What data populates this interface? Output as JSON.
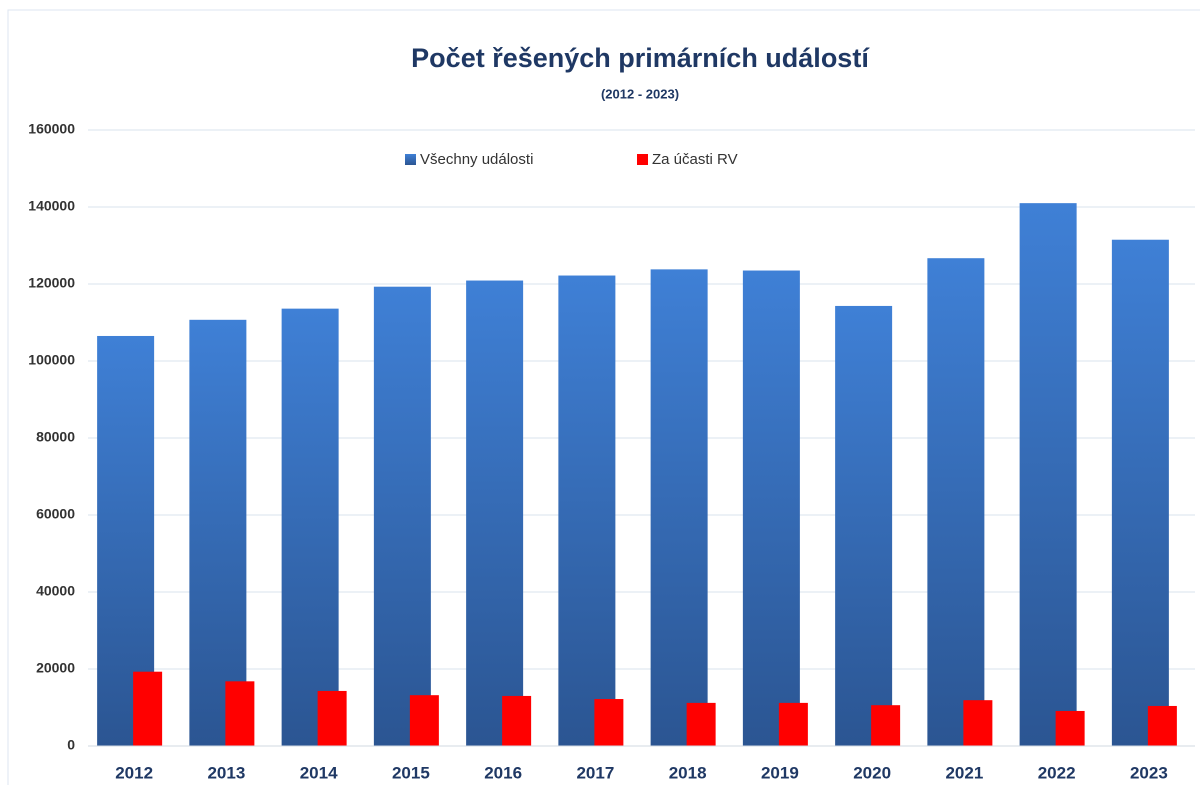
{
  "chart_data": {
    "type": "bar",
    "title": "Počet řešených primárních událostí",
    "subtitle": "(2012 - 2023)",
    "categories": [
      "2012",
      "2013",
      "2014",
      "2015",
      "2016",
      "2017",
      "2018",
      "2019",
      "2020",
      "2021",
      "2022",
      "2023"
    ],
    "series": [
      {
        "name": "Všechny události",
        "color": "#3a78cc",
        "values": [
          106500,
          110700,
          113600,
          119300,
          120900,
          122200,
          123800,
          123500,
          114300,
          126700,
          141000,
          131500
        ]
      },
      {
        "name": "Za účasti RV",
        "color": "#ff0000",
        "values": [
          19300,
          16800,
          14300,
          13200,
          13000,
          12200,
          11200,
          11200,
          10600,
          11900,
          9100,
          10400
        ]
      }
    ],
    "ylim": [
      0,
      160000
    ],
    "yticks": [
      0,
      20000,
      40000,
      60000,
      80000,
      100000,
      120000,
      140000,
      160000
    ],
    "grid": true,
    "legend": "top"
  }
}
